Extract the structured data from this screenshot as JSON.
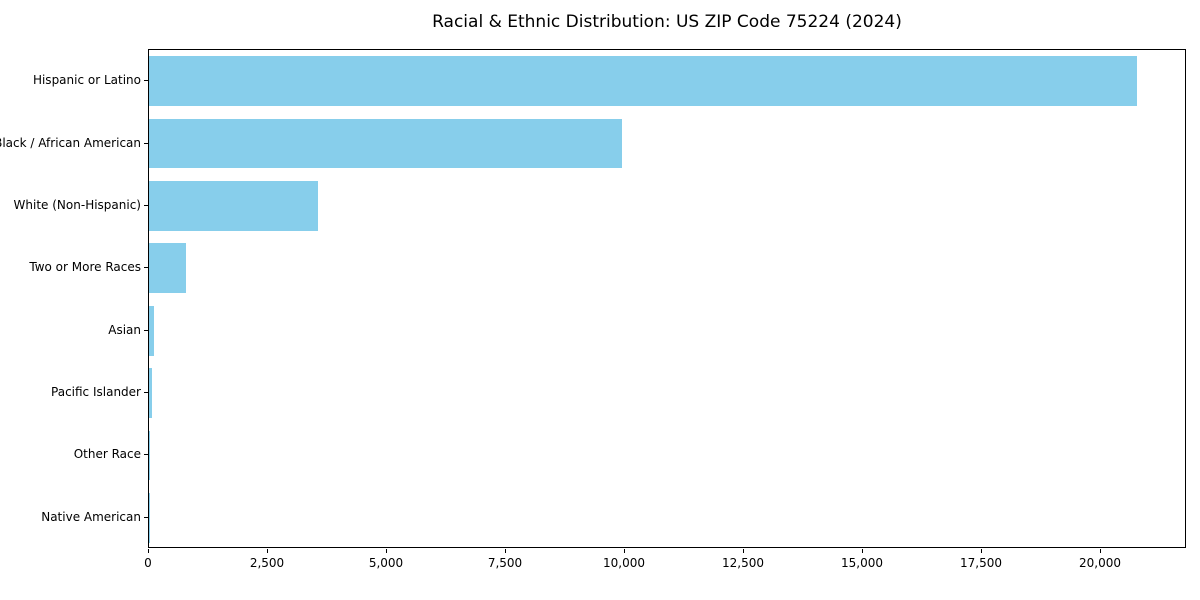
{
  "title": "Racial & Ethnic Distribution: US ZIP Code 75224 (2024)",
  "chart_data": {
    "type": "bar",
    "orientation": "horizontal",
    "title": "Racial & Ethnic Distribution: US ZIP Code 75224 (2024)",
    "categories": [
      "Hispanic or Latino",
      "Black / African American",
      "White (Non-Hispanic)",
      "Two or More Races",
      "Asian",
      "Pacific Islander",
      "Other Race",
      "Native American"
    ],
    "values": [
      20760,
      9930,
      3550,
      780,
      100,
      55,
      20,
      8
    ],
    "xlabel": "",
    "ylabel": "",
    "xlim": [
      0,
      21807
    ],
    "x_ticks": [
      0,
      2500,
      5000,
      7500,
      10000,
      12500,
      15000,
      17500,
      20000
    ],
    "x_tick_labels": [
      "0",
      "2,500",
      "5,000",
      "7,500",
      "10,000",
      "12,500",
      "15,000",
      "17,500",
      "20,000"
    ],
    "grid": false,
    "legend_position": "none",
    "bar_color": "#87CEEB",
    "spine_color": "#000000",
    "text_color": "#000000",
    "background_color": "#ffffff",
    "bar_height_fraction": 0.8
  }
}
